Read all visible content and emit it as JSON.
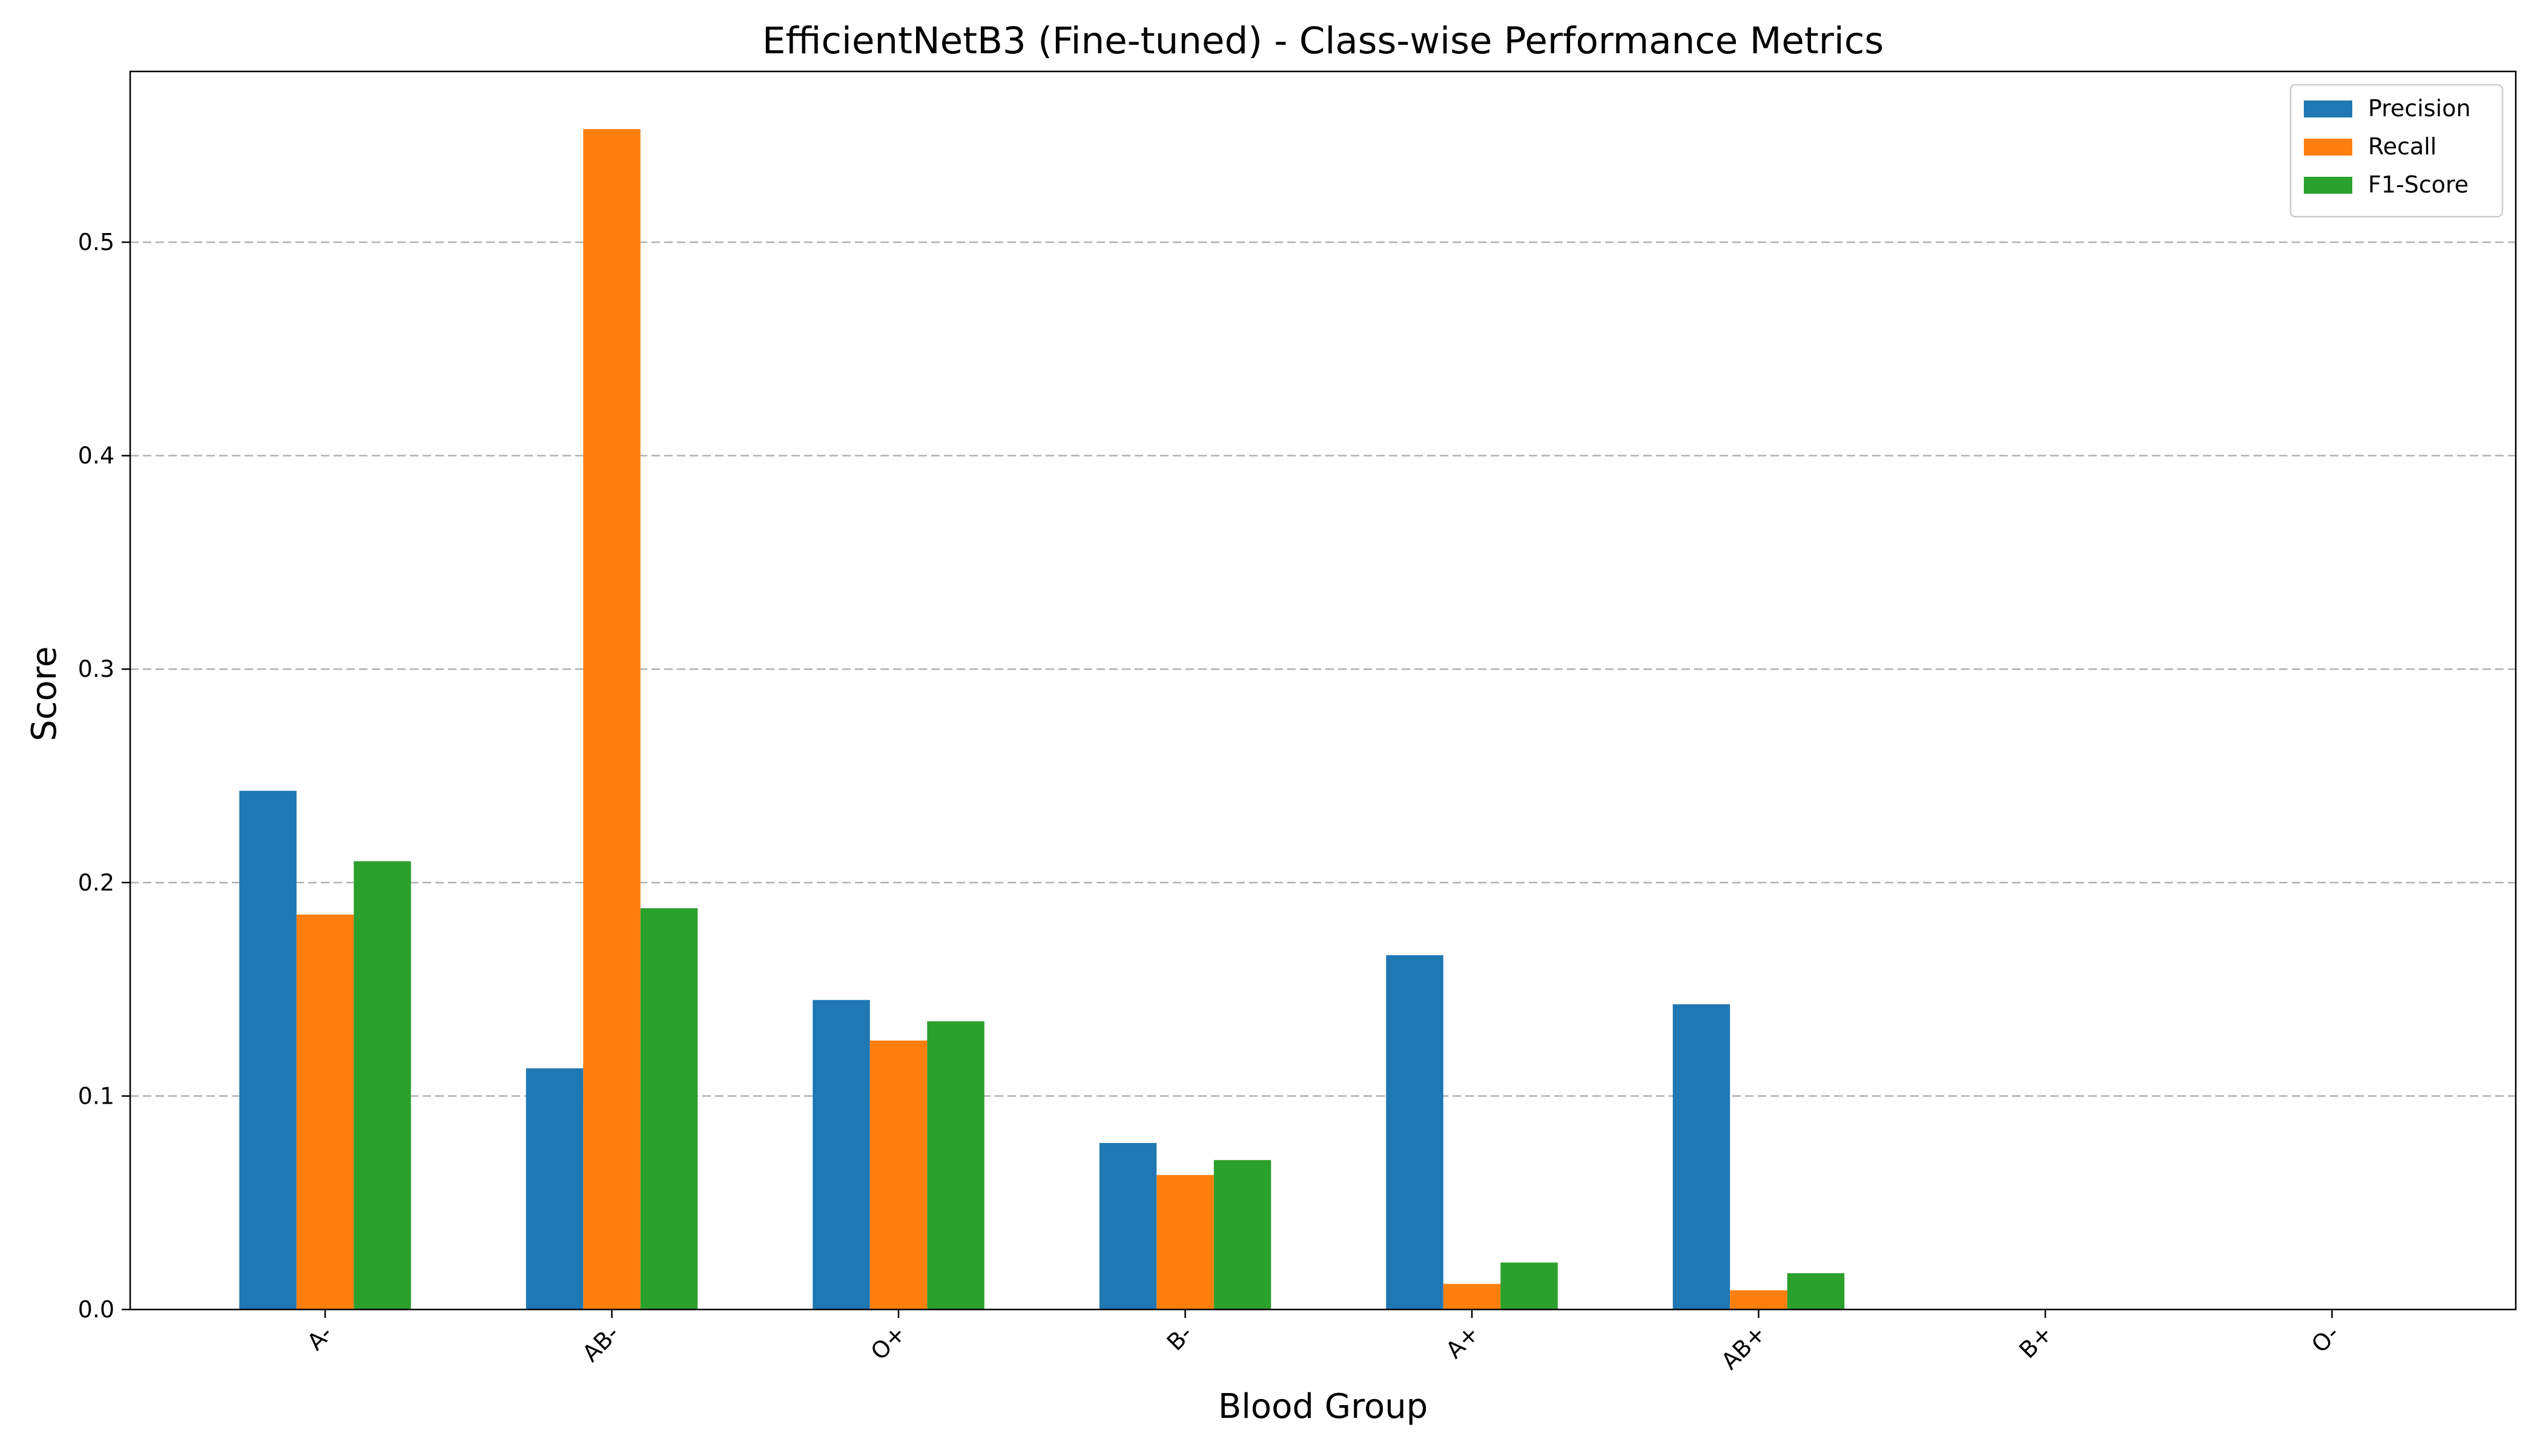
{
  "chart_data": {
    "type": "bar",
    "title": "EfficientNetB3 (Fine-tuned) - Class-wise Performance Metrics",
    "xlabel": "Blood Group",
    "ylabel": "Score",
    "categories": [
      "A-",
      "AB-",
      "O+",
      "B-",
      "A+",
      "AB+",
      "B+",
      "O-"
    ],
    "series": [
      {
        "name": "Precision",
        "color": "#1f77b4",
        "values": [
          0.243,
          0.113,
          0.145,
          0.078,
          0.166,
          0.143,
          0.0,
          0.0
        ]
      },
      {
        "name": "Recall",
        "color": "#ff7f0e",
        "values": [
          0.185,
          0.553,
          0.126,
          0.063,
          0.012,
          0.009,
          0.0,
          0.0
        ]
      },
      {
        "name": "F1-Score",
        "color": "#2ca02c",
        "values": [
          0.21,
          0.188,
          0.135,
          0.07,
          0.022,
          0.017,
          0.0,
          0.0
        ]
      }
    ],
    "ylim": [
      0,
      0.58
    ],
    "yticks": [
      0.0,
      0.1,
      0.2,
      0.3,
      0.4,
      0.5
    ],
    "ytick_labels": [
      "0.0",
      "0.1",
      "0.2",
      "0.3",
      "0.4",
      "0.5"
    ],
    "grid": "y-dashed",
    "legend_position": "top-right"
  }
}
